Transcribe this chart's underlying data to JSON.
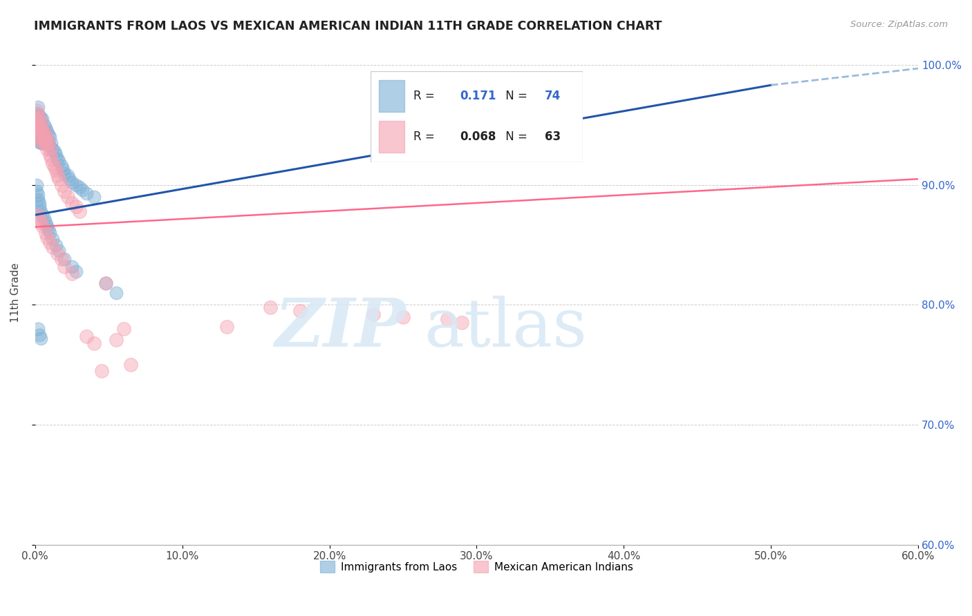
{
  "title": "IMMIGRANTS FROM LAOS VS MEXICAN AMERICAN INDIAN 11TH GRADE CORRELATION CHART",
  "source": "Source: ZipAtlas.com",
  "ylabel": "11th Grade",
  "xlim": [
    0.0,
    0.6
  ],
  "ylim": [
    0.6,
    1.02
  ],
  "xtick_labels": [
    "0.0%",
    "10.0%",
    "20.0%",
    "30.0%",
    "40.0%",
    "50.0%",
    "60.0%"
  ],
  "xtick_vals": [
    0.0,
    0.1,
    0.2,
    0.3,
    0.4,
    0.5,
    0.6
  ],
  "ytick_labels": [
    "60.0%",
    "70.0%",
    "80.0%",
    "90.0%",
    "100.0%"
  ],
  "ytick_vals": [
    0.6,
    0.7,
    0.8,
    0.9,
    1.0
  ],
  "blue_color": "#7BAFD4",
  "pink_color": "#F4A0B0",
  "trend_blue": "#2255AA",
  "trend_pink": "#FF6688",
  "dashed_blue": "#99BBDD",
  "R_blue": 0.171,
  "N_blue": 74,
  "R_pink": 0.068,
  "N_pink": 63,
  "blue_trend_x0": 0.0,
  "blue_trend_y0": 0.875,
  "blue_trend_x1": 0.6,
  "blue_trend_y1": 1.005,
  "pink_trend_x0": 0.0,
  "pink_trend_y0": 0.865,
  "pink_trend_x1": 0.6,
  "pink_trend_y1": 0.905,
  "blue_scatter_x": [
    0.001,
    0.001,
    0.001,
    0.001,
    0.001,
    0.002,
    0.002,
    0.002,
    0.002,
    0.002,
    0.003,
    0.003,
    0.003,
    0.003,
    0.004,
    0.004,
    0.004,
    0.004,
    0.005,
    0.005,
    0.005,
    0.005,
    0.006,
    0.006,
    0.006,
    0.007,
    0.007,
    0.008,
    0.008,
    0.009,
    0.009,
    0.01,
    0.01,
    0.011,
    0.012,
    0.013,
    0.014,
    0.015,
    0.016,
    0.018,
    0.019,
    0.02,
    0.022,
    0.023,
    0.025,
    0.028,
    0.03,
    0.032,
    0.035,
    0.04,
    0.001,
    0.001,
    0.002,
    0.002,
    0.003,
    0.003,
    0.004,
    0.005,
    0.006,
    0.007,
    0.008,
    0.009,
    0.01,
    0.012,
    0.014,
    0.016,
    0.02,
    0.025,
    0.028,
    0.048,
    0.002,
    0.003,
    0.004,
    0.055
  ],
  "blue_scatter_y": [
    0.96,
    0.958,
    0.952,
    0.948,
    0.94,
    0.965,
    0.955,
    0.948,
    0.942,
    0.936,
    0.958,
    0.95,
    0.945,
    0.938,
    0.955,
    0.948,
    0.94,
    0.935,
    0.955,
    0.948,
    0.942,
    0.935,
    0.95,
    0.945,
    0.938,
    0.948,
    0.94,
    0.945,
    0.938,
    0.942,
    0.935,
    0.94,
    0.932,
    0.935,
    0.93,
    0.928,
    0.925,
    0.922,
    0.92,
    0.916,
    0.913,
    0.91,
    0.908,
    0.905,
    0.902,
    0.9,
    0.898,
    0.896,
    0.893,
    0.89,
    0.9,
    0.895,
    0.892,
    0.888,
    0.885,
    0.882,
    0.878,
    0.875,
    0.872,
    0.869,
    0.866,
    0.863,
    0.86,
    0.855,
    0.85,
    0.845,
    0.838,
    0.832,
    0.828,
    0.818,
    0.78,
    0.775,
    0.772,
    0.81
  ],
  "pink_scatter_x": [
    0.001,
    0.001,
    0.001,
    0.001,
    0.002,
    0.002,
    0.002,
    0.003,
    0.003,
    0.003,
    0.004,
    0.004,
    0.004,
    0.005,
    0.005,
    0.005,
    0.006,
    0.006,
    0.007,
    0.007,
    0.008,
    0.008,
    0.009,
    0.01,
    0.01,
    0.011,
    0.012,
    0.013,
    0.014,
    0.015,
    0.016,
    0.018,
    0.02,
    0.022,
    0.025,
    0.028,
    0.03,
    0.002,
    0.003,
    0.004,
    0.005,
    0.007,
    0.008,
    0.01,
    0.012,
    0.015,
    0.018,
    0.02,
    0.025,
    0.048,
    0.16,
    0.18,
    0.23,
    0.25,
    0.28,
    0.29,
    0.13,
    0.06,
    0.035,
    0.055,
    0.04,
    0.065,
    0.045
  ],
  "pink_scatter_y": [
    0.962,
    0.955,
    0.948,
    0.942,
    0.958,
    0.95,
    0.944,
    0.955,
    0.948,
    0.941,
    0.952,
    0.946,
    0.938,
    0.948,
    0.942,
    0.935,
    0.944,
    0.938,
    0.941,
    0.935,
    0.938,
    0.93,
    0.935,
    0.93,
    0.925,
    0.922,
    0.918,
    0.915,
    0.912,
    0.908,
    0.905,
    0.9,
    0.895,
    0.89,
    0.885,
    0.882,
    0.878,
    0.875,
    0.872,
    0.869,
    0.866,
    0.86,
    0.856,
    0.852,
    0.848,
    0.843,
    0.838,
    0.832,
    0.826,
    0.818,
    0.798,
    0.795,
    0.792,
    0.79,
    0.788,
    0.785,
    0.782,
    0.78,
    0.774,
    0.771,
    0.768,
    0.75,
    0.745
  ]
}
